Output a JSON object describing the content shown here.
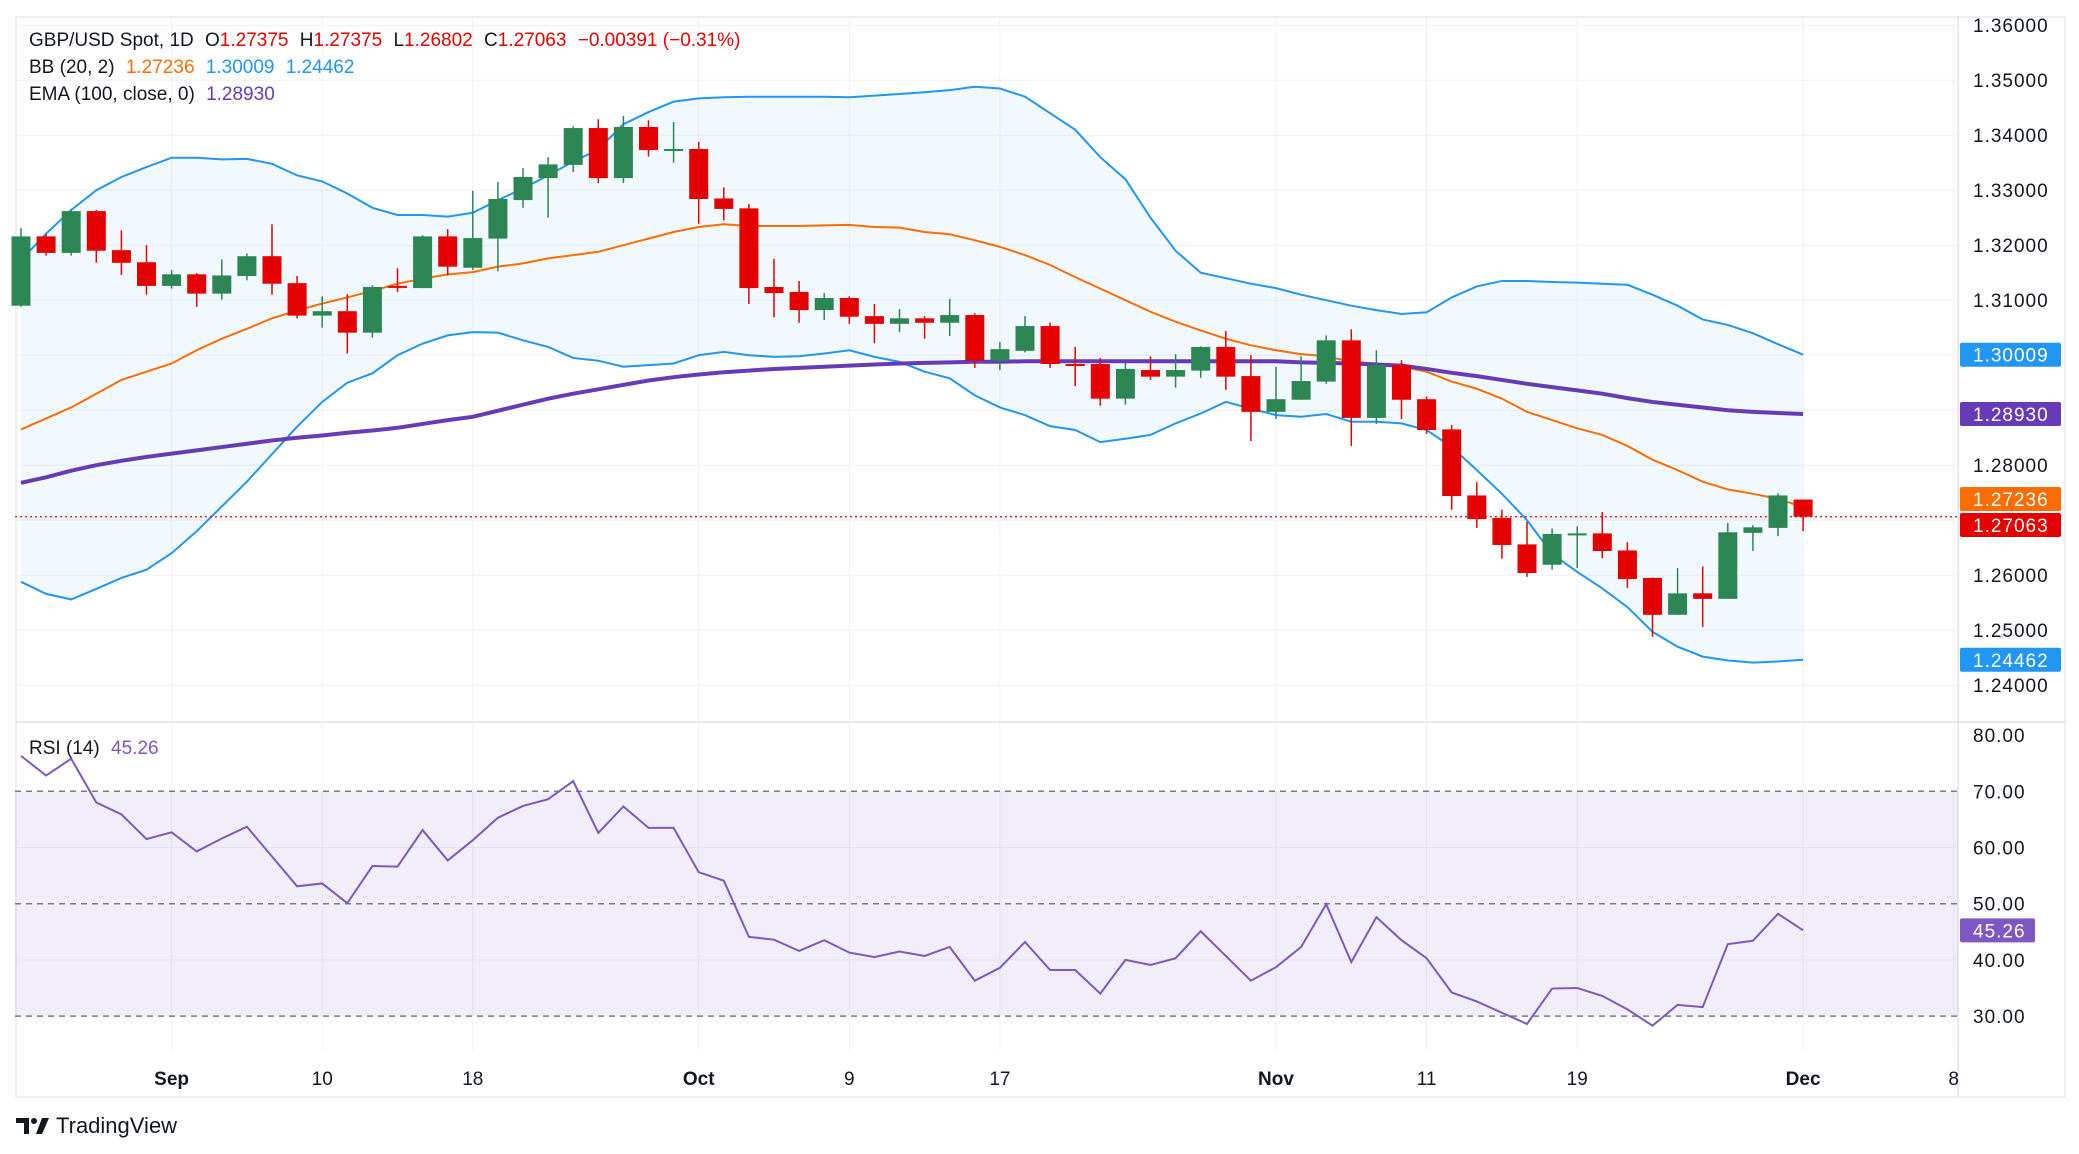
{
  "header": {
    "symbol": "GBP/USD Spot, 1D",
    "o_label": "O",
    "open": "1.27375",
    "h_label": "H",
    "high": "1.27375",
    "l_label": "L",
    "low": "1.26802",
    "c_label": "C",
    "close": "1.27063",
    "change": "−0.00391 (−0.31%)"
  },
  "indicators": {
    "bb": {
      "label": "BB (20, 2)",
      "basis": "1.27236",
      "upper": "1.30009",
      "lower": "1.24462"
    },
    "ema": {
      "label": "EMA (100, close, 0)",
      "value": "1.28930"
    },
    "rsi": {
      "label": "RSI (14)",
      "value": "45.26"
    }
  },
  "branding": {
    "name": "TradingView"
  },
  "colors": {
    "up": "#2c8653",
    "down": "#e50000",
    "bb_upper_lower": "#2196f3",
    "bb_basis": "#ff6d00",
    "ema": "#673ab7",
    "rsi": "#7e57c2",
    "last_price": "#e50000"
  },
  "chart_data": [
    {
      "type": "candlestick",
      "title": "GBP/USD Spot, 1D",
      "ylim": [
        1.235,
        1.362
      ],
      "y_ticks": [
        "1.36000",
        "1.35000",
        "1.34000",
        "1.33000",
        "1.32000",
        "1.31000",
        "1.28000",
        "1.26000",
        "1.25000",
        "1.24000"
      ],
      "x_ticks": [
        {
          "label": "Sep",
          "date": "2024-09-02",
          "bold": true
        },
        {
          "label": "10",
          "date": "2024-09-10"
        },
        {
          "label": "18",
          "date": "2024-09-18"
        },
        {
          "label": "Oct",
          "date": "2024-10-01",
          "bold": true
        },
        {
          "label": "9",
          "date": "2024-10-09"
        },
        {
          "label": "17",
          "date": "2024-10-17"
        },
        {
          "label": "Nov",
          "date": "2024-11-01",
          "bold": true
        },
        {
          "label": "11",
          "date": "2024-11-11"
        },
        {
          "label": "19",
          "date": "2024-11-19"
        },
        {
          "label": "Dec",
          "date": "2024-12-02",
          "bold": true
        },
        {
          "label": "8",
          "date": "2024-12-08"
        }
      ],
      "price_badges": [
        {
          "value": "1.30009",
          "color": "#2196f3"
        },
        {
          "value": "1.28930",
          "color": "#673ab7"
        },
        {
          "value": "1.27236",
          "color": "#ff6d00"
        },
        {
          "value": "1.27063",
          "color": "#e50000"
        },
        {
          "value": "1.24462",
          "color": "#2196f3"
        }
      ],
      "columns": [
        "date",
        "open",
        "high",
        "low",
        "close"
      ],
      "candles": [
        [
          "2024-08-23",
          1.309,
          1.3231,
          1.3088,
          1.3216
        ],
        [
          "2024-08-26",
          1.3216,
          1.3221,
          1.3181,
          1.3186
        ],
        [
          "2024-08-27",
          1.3186,
          1.3265,
          1.3181,
          1.3262
        ],
        [
          "2024-08-28",
          1.3262,
          1.3264,
          1.3168,
          1.319
        ],
        [
          "2024-08-29",
          1.3191,
          1.3227,
          1.3146,
          1.3168
        ],
        [
          "2024-08-30",
          1.3169,
          1.32,
          1.311,
          1.3126
        ],
        [
          "2024-09-02",
          1.3126,
          1.3155,
          1.3121,
          1.3147
        ],
        [
          "2024-09-03",
          1.3147,
          1.3149,
          1.3088,
          1.3112
        ],
        [
          "2024-09-04",
          1.3112,
          1.3174,
          1.3101,
          1.3145
        ],
        [
          "2024-09-05",
          1.3144,
          1.3185,
          1.3136,
          1.318
        ],
        [
          "2024-09-06",
          1.318,
          1.3238,
          1.311,
          1.313
        ],
        [
          "2024-09-09",
          1.3131,
          1.3144,
          1.3067,
          1.3072
        ],
        [
          "2024-09-10",
          1.3072,
          1.3107,
          1.305,
          1.308
        ],
        [
          "2024-09-11",
          1.308,
          1.3111,
          1.3003,
          1.3041
        ],
        [
          "2024-09-12",
          1.3041,
          1.3127,
          1.3032,
          1.3124
        ],
        [
          "2024-09-13",
          1.3126,
          1.3158,
          1.3115,
          1.3124
        ],
        [
          "2024-09-16",
          1.3122,
          1.3218,
          1.3122,
          1.3216
        ],
        [
          "2024-09-17",
          1.3216,
          1.3229,
          1.3145,
          1.3161
        ],
        [
          "2024-09-18",
          1.3159,
          1.3299,
          1.3155,
          1.3213
        ],
        [
          "2024-09-19",
          1.3212,
          1.3315,
          1.3153,
          1.3284
        ],
        [
          "2024-09-20",
          1.3282,
          1.334,
          1.3268,
          1.3324
        ],
        [
          "2024-09-23",
          1.3322,
          1.336,
          1.325,
          1.3347
        ],
        [
          "2024-09-24",
          1.3346,
          1.3416,
          1.3333,
          1.3413
        ],
        [
          "2024-09-25",
          1.3413,
          1.3429,
          1.3313,
          1.3322
        ],
        [
          "2024-09-26",
          1.3322,
          1.3435,
          1.3313,
          1.3415
        ],
        [
          "2024-09-27",
          1.3415,
          1.3427,
          1.3361,
          1.3373
        ],
        [
          "2024-09-30",
          1.3374,
          1.3424,
          1.335,
          1.3375
        ],
        [
          "2024-10-01",
          1.3375,
          1.3388,
          1.3239,
          1.3284
        ],
        [
          "2024-10-02",
          1.3285,
          1.3305,
          1.3245,
          1.3266
        ],
        [
          "2024-10-03",
          1.3267,
          1.3275,
          1.3093,
          1.3122
        ],
        [
          "2024-10-04",
          1.3124,
          1.3175,
          1.3069,
          1.3113
        ],
        [
          "2024-10-07",
          1.3115,
          1.3135,
          1.3059,
          1.3082
        ],
        [
          "2024-10-08",
          1.3082,
          1.3113,
          1.3064,
          1.3104
        ],
        [
          "2024-10-09",
          1.3104,
          1.3107,
          1.3057,
          1.307
        ],
        [
          "2024-10-10",
          1.3071,
          1.3093,
          1.3022,
          1.3057
        ],
        [
          "2024-10-11",
          1.3057,
          1.3084,
          1.3042,
          1.3067
        ],
        [
          "2024-10-14",
          1.3067,
          1.3071,
          1.303,
          1.3059
        ],
        [
          "2024-10-15",
          1.3059,
          1.3102,
          1.3035,
          1.3073
        ],
        [
          "2024-10-16",
          1.3073,
          1.3076,
          1.2977,
          1.299
        ],
        [
          "2024-10-17",
          1.299,
          1.3024,
          1.2973,
          1.3011
        ],
        [
          "2024-10-18",
          1.3008,
          1.3071,
          1.3005,
          1.3053
        ],
        [
          "2024-10-21",
          1.3053,
          1.3059,
          1.2977,
          1.2984
        ],
        [
          "2024-10-22",
          1.2984,
          1.3015,
          1.2944,
          1.2982
        ],
        [
          "2024-10-23",
          1.2984,
          1.2995,
          1.2908,
          1.2921
        ],
        [
          "2024-10-24",
          1.2921,
          1.2987,
          1.291,
          1.2975
        ],
        [
          "2024-10-25",
          1.2973,
          1.2998,
          1.2955,
          1.2961
        ],
        [
          "2024-10-28",
          1.2961,
          1.3002,
          1.2941,
          1.2973
        ],
        [
          "2024-10-29",
          1.2972,
          1.3016,
          1.2959,
          1.3015
        ],
        [
          "2024-10-30",
          1.3015,
          1.3044,
          1.2937,
          1.2961
        ],
        [
          "2024-10-31",
          1.2962,
          1.3,
          1.2844,
          1.2897
        ],
        [
          "2024-11-01",
          1.2897,
          1.2979,
          1.2884,
          1.292
        ],
        [
          "2024-11-04",
          1.2919,
          1.2998,
          1.2919,
          1.2953
        ],
        [
          "2024-11-05",
          1.2952,
          1.3036,
          1.2948,
          1.3027
        ],
        [
          "2024-11-06",
          1.3027,
          1.3047,
          1.2835,
          1.2886
        ],
        [
          "2024-11-07",
          1.2886,
          1.3009,
          1.2875,
          1.2982
        ],
        [
          "2024-11-08",
          1.2982,
          1.2991,
          1.2884,
          1.2919
        ],
        [
          "2024-11-11",
          1.292,
          1.2925,
          1.2857,
          1.2864
        ],
        [
          "2024-11-12",
          1.2865,
          1.2873,
          1.2719,
          1.2744
        ],
        [
          "2024-11-13",
          1.2745,
          1.2769,
          1.2686,
          1.2702
        ],
        [
          "2024-11-14",
          1.2704,
          1.2719,
          1.263,
          1.2655
        ],
        [
          "2024-11-15",
          1.2656,
          1.2697,
          1.2597,
          1.2604
        ],
        [
          "2024-11-18",
          1.2619,
          1.2685,
          1.261,
          1.2675
        ],
        [
          "2024-11-19",
          1.2674,
          1.2689,
          1.2613,
          1.2676
        ],
        [
          "2024-11-20",
          1.2676,
          1.2715,
          1.2631,
          1.2644
        ],
        [
          "2024-11-21",
          1.2645,
          1.266,
          1.2577,
          1.2593
        ],
        [
          "2024-11-22",
          1.2595,
          1.2596,
          1.2488,
          1.2528
        ],
        [
          "2024-11-25",
          1.2528,
          1.2613,
          1.2528,
          1.2567
        ],
        [
          "2024-11-26",
          1.2567,
          1.2616,
          1.2506,
          1.2557
        ],
        [
          "2024-11-27",
          1.2557,
          1.2695,
          1.2557,
          1.2678
        ],
        [
          "2024-11-28",
          1.2677,
          1.2691,
          1.2644,
          1.2687
        ],
        [
          "2024-11-29",
          1.2686,
          1.2749,
          1.2671,
          1.2745
        ],
        [
          "2024-12-02",
          1.27375,
          1.27375,
          1.26802,
          1.27063
        ]
      ],
      "bb_upper": [
        1.3173,
        1.3221,
        1.3264,
        1.33,
        1.3324,
        1.3342,
        1.3359,
        1.3359,
        1.3356,
        1.3357,
        1.3348,
        1.3327,
        1.3316,
        1.3294,
        1.3268,
        1.3255,
        1.3255,
        1.3252,
        1.3259,
        1.3282,
        1.3303,
        1.3327,
        1.3352,
        1.3374,
        1.342,
        1.3442,
        1.3461,
        1.3467,
        1.3469,
        1.347,
        1.347,
        1.347,
        1.347,
        1.3469,
        1.3472,
        1.3475,
        1.3478,
        1.3482,
        1.3488,
        1.3485,
        1.347,
        1.344,
        1.341,
        1.336,
        1.332,
        1.325,
        1.319,
        1.315,
        1.314,
        1.313,
        1.3122,
        1.311,
        1.31,
        1.309,
        1.3082,
        1.3075,
        1.3078,
        1.3105,
        1.3125,
        1.3135,
        1.3135,
        1.3133,
        1.3132,
        1.313,
        1.3128,
        1.311,
        1.309,
        1.3065,
        1.3055,
        1.304,
        1.302,
        1.30009
      ],
      "bb_basis": [
        1.2865,
        1.2885,
        1.2905,
        1.293,
        1.2955,
        1.297,
        1.2985,
        1.3009,
        1.303,
        1.3048,
        1.3067,
        1.3081,
        1.3094,
        1.3105,
        1.3117,
        1.313,
        1.3139,
        1.3147,
        1.3151,
        1.3161,
        1.3167,
        1.3176,
        1.3182,
        1.3188,
        1.32,
        1.3212,
        1.3224,
        1.3233,
        1.3238,
        1.3235,
        1.3235,
        1.3235,
        1.3236,
        1.3237,
        1.3233,
        1.3232,
        1.3224,
        1.322,
        1.3209,
        1.3197,
        1.3182,
        1.3164,
        1.3142,
        1.3121,
        1.31,
        1.3079,
        1.3061,
        1.3045,
        1.303,
        1.3018,
        1.3009,
        1.3002,
        1.2998,
        1.2988,
        1.2985,
        1.2979,
        1.297,
        1.2952,
        1.2939,
        1.2921,
        1.2897,
        1.2882,
        1.2867,
        1.2855,
        1.2835,
        1.281,
        1.2791,
        1.277,
        1.2756,
        1.2748,
        1.2739,
        1.27236
      ],
      "bb_lower": [
        1.2588,
        1.2566,
        1.2556,
        1.2575,
        1.2595,
        1.261,
        1.264,
        1.268,
        1.2725,
        1.277,
        1.282,
        1.287,
        1.2915,
        1.295,
        1.2967,
        1.3,
        1.3021,
        1.3036,
        1.3042,
        1.3041,
        1.3027,
        1.3015,
        1.2995,
        1.299,
        1.2979,
        1.2982,
        1.2985,
        1.3,
        1.3006,
        1.3,
        1.2997,
        1.2998,
        1.3003,
        1.3009,
        1.2997,
        1.2988,
        1.297,
        1.2958,
        1.2927,
        1.2905,
        1.2891,
        1.2871,
        1.2864,
        1.2842,
        1.2848,
        1.2855,
        1.2876,
        1.2894,
        1.2915,
        1.2903,
        1.2891,
        1.2888,
        1.2893,
        1.2879,
        1.2879,
        1.2876,
        1.2864,
        1.2833,
        1.2791,
        1.2748,
        1.27,
        1.2639,
        1.2606,
        1.2576,
        1.2542,
        1.2497,
        1.247,
        1.2452,
        1.2445,
        1.2441,
        1.2443,
        1.24462
      ],
      "ema_100": [
        1.2768,
        1.2778,
        1.279,
        1.28,
        1.2808,
        1.2815,
        1.2821,
        1.2827,
        1.2833,
        1.2839,
        1.2845,
        1.285,
        1.2854,
        1.2859,
        1.2863,
        1.2868,
        1.2875,
        1.2882,
        1.2888,
        1.2899,
        1.291,
        1.2921,
        1.293,
        1.2938,
        1.2946,
        1.2954,
        1.296,
        1.2965,
        1.2969,
        1.2972,
        1.2975,
        1.2977,
        1.2979,
        1.2981,
        1.2983,
        1.2985,
        1.2986,
        1.2987,
        1.2988,
        1.2988,
        1.2989,
        1.2989,
        1.2989,
        1.2989,
        1.2989,
        1.2989,
        1.2989,
        1.2989,
        1.2989,
        1.2989,
        1.2989,
        1.2987,
        1.2986,
        1.2985,
        1.2983,
        1.2981,
        1.2975,
        1.2968,
        1.2962,
        1.2955,
        1.2948,
        1.2942,
        1.2936,
        1.293,
        1.2922,
        1.2915,
        1.291,
        1.2905,
        1.29,
        1.2897,
        1.2895,
        1.2893
      ],
      "last_price": 1.27063
    },
    {
      "type": "line",
      "title": "RSI (14)",
      "ylim": [
        24,
        81
      ],
      "y_ticks": [
        "80.00",
        "70.00",
        "60.00",
        "50.00",
        "40.00",
        "30.00"
      ],
      "levels": [
        70,
        50,
        30
      ],
      "band": [
        30,
        70
      ],
      "badge": {
        "value": "45.26",
        "color": "#7e57c2"
      },
      "values": [
        76.3,
        72.8,
        75.8,
        68.0,
        65.9,
        61.5,
        62.7,
        59.3,
        61.6,
        63.7,
        58.4,
        53.1,
        53.6,
        50.1,
        56.7,
        56.6,
        63.1,
        57.7,
        61.3,
        65.3,
        67.4,
        68.6,
        71.8,
        62.6,
        67.3,
        63.5,
        63.5,
        55.6,
        54.1,
        44.1,
        43.6,
        41.6,
        43.5,
        41.3,
        40.5,
        41.5,
        40.7,
        42.3,
        36.3,
        38.6,
        43.2,
        38.2,
        38.2,
        34.0,
        40.0,
        39.1,
        40.3,
        45.1,
        40.7,
        36.3,
        38.7,
        42.3,
        49.9,
        39.6,
        47.6,
        43.5,
        40.3,
        34.2,
        32.6,
        30.6,
        28.6,
        34.9,
        35.0,
        33.6,
        31.2,
        28.3,
        32.0,
        31.6,
        42.8,
        43.4,
        48.2,
        45.26
      ]
    }
  ]
}
